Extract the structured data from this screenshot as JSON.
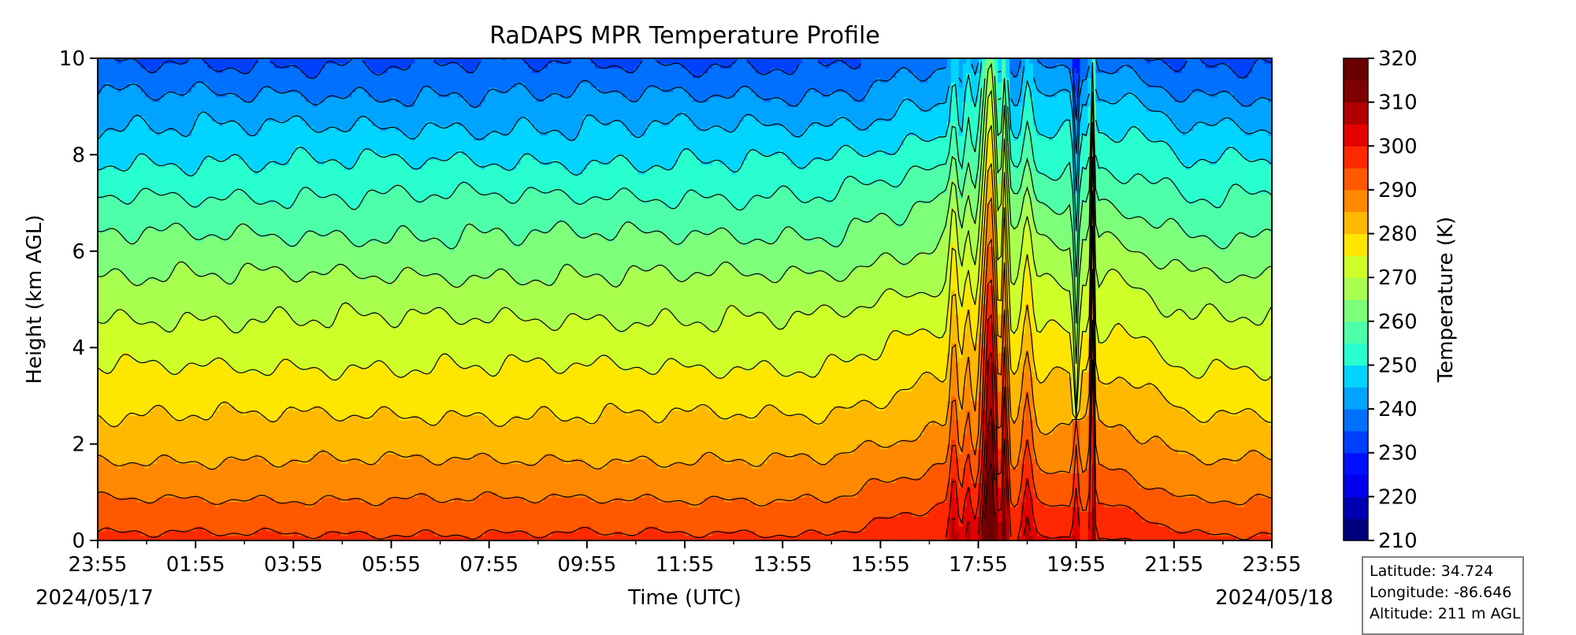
{
  "chart_data": {
    "type": "heatmap",
    "title": "RaDAPS MPR Temperature Profile",
    "xlabel": "Time (UTC)",
    "ylabel": "Height (km AGL)",
    "x_tick_labels": [
      "23:55",
      "01:55",
      "03:55",
      "05:55",
      "07:55",
      "09:55",
      "11:55",
      "13:55",
      "15:55",
      "17:55",
      "19:55",
      "21:55",
      "23:55"
    ],
    "x_range": [
      "2024/05/17 23:55",
      "2024/05/18 23:55"
    ],
    "start_date_label": "2024/05/17",
    "end_date_label": "2024/05/18",
    "y_tick_labels": [
      "0",
      "2",
      "4",
      "6",
      "8",
      "10"
    ],
    "ylim": [
      0,
      10
    ],
    "colorbar": {
      "label": "Temperature (K)",
      "range": [
        210,
        320
      ],
      "step": 5,
      "tick_labels": [
        "210",
        "220",
        "230",
        "240",
        "250",
        "260",
        "270",
        "280",
        "290",
        "300",
        "310",
        "320"
      ],
      "colormap": "jet",
      "colors": [
        "#00007f",
        "#0000b2",
        "#0000ed",
        "#0010ff",
        "#0040ff",
        "#0070ff",
        "#00a4ff",
        "#00d4ff",
        "#29ffce",
        "#4effa9",
        "#7dff7a",
        "#a9ff4e",
        "#ceff29",
        "#ffe600",
        "#ffb900",
        "#ff8900",
        "#ff5900",
        "#ff2900",
        "#e50000",
        "#b20000",
        "#7f0000",
        "#6a0000"
      ]
    },
    "profile": {
      "height_km": [
        0,
        1,
        2,
        3,
        4,
        5,
        6,
        7,
        8,
        9,
        10
      ],
      "temperature_k_typical": [
        296,
        289,
        283,
        278,
        273,
        268,
        262,
        256,
        249,
        242,
        234
      ]
    },
    "event_times_utc": [
      "17:25",
      "18:10",
      "18:55",
      "19:55",
      "20:15"
    ],
    "grid": false,
    "contour_lines": true
  },
  "info_box": {
    "latitude": "Latitude: 34.724",
    "longitude": "Longitude: -86.646",
    "altitude": "Altitude: 211 m AGL"
  }
}
